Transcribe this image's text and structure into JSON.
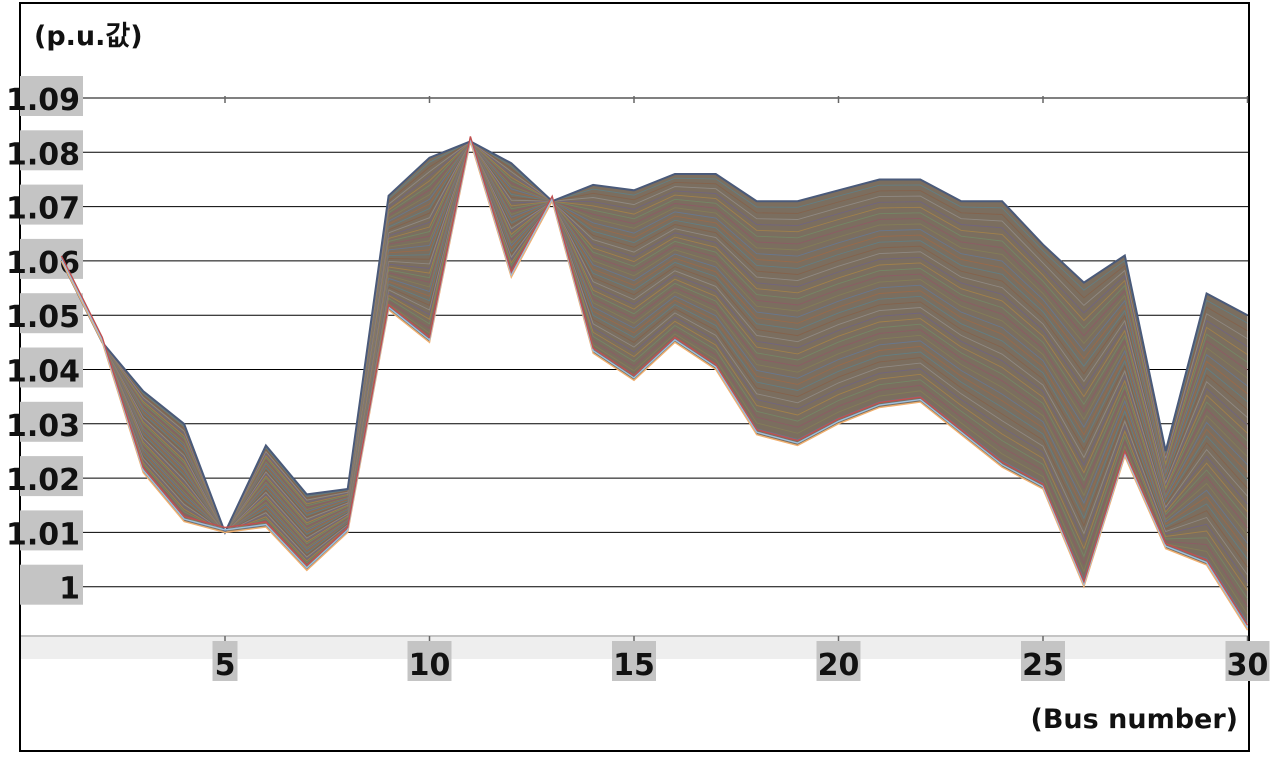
{
  "chart_data": {
    "type": "line",
    "ylabel": "(p.u.값)",
    "xlabel": "(Bus number)",
    "x": [
      1,
      2,
      3,
      4,
      5,
      6,
      7,
      8,
      9,
      10,
      11,
      12,
      13,
      14,
      15,
      16,
      17,
      18,
      19,
      20,
      21,
      22,
      23,
      24,
      25,
      26,
      27,
      28,
      29,
      30
    ],
    "xlim": [
      1,
      30
    ],
    "ylim": [
      0.99,
      1.09
    ],
    "x_ticks": [
      5,
      10,
      15,
      20,
      25,
      30
    ],
    "y_ticks": [
      1.09,
      1.08,
      1.07,
      1.06,
      1.05,
      1.04,
      1.03,
      1.02,
      1.01,
      1
    ],
    "x_tick_labels": [
      "5",
      "10",
      "15",
      "20",
      "25",
      "30"
    ],
    "y_tick_labels": [
      "1.09",
      "1.08",
      "1.07",
      "1.06",
      "1.05",
      "1.04",
      "1.03",
      "1.02",
      "1.01",
      "1"
    ],
    "envelope_upper": [
      1.06,
      1.045,
      1.036,
      1.03,
      1.01,
      1.026,
      1.017,
      1.018,
      1.072,
      1.079,
      1.082,
      1.078,
      1.071,
      1.074,
      1.073,
      1.076,
      1.076,
      1.071,
      1.071,
      1.073,
      1.075,
      1.075,
      1.071,
      1.071,
      1.063,
      1.056,
      1.061,
      1.025,
      1.054,
      1.05
    ],
    "envelope_lower": [
      1.06,
      1.045,
      1.021,
      1.012,
      1.01,
      1.011,
      1.003,
      1.01,
      1.051,
      1.045,
      1.082,
      1.057,
      1.071,
      1.043,
      1.038,
      1.045,
      1.04,
      1.028,
      1.026,
      1.03,
      1.033,
      1.034,
      1.028,
      1.022,
      1.018,
      1.0,
      1.024,
      1.007,
      1.004,
      0.992
    ],
    "series_count": "many",
    "grid": true
  },
  "colors": {
    "band_fill": "#7b6e5f",
    "band_edge": "#4a5a7a",
    "grid": "#000000",
    "tick_label_bg": "#c4c4c4",
    "x_axis_band": "#eeeeee"
  }
}
